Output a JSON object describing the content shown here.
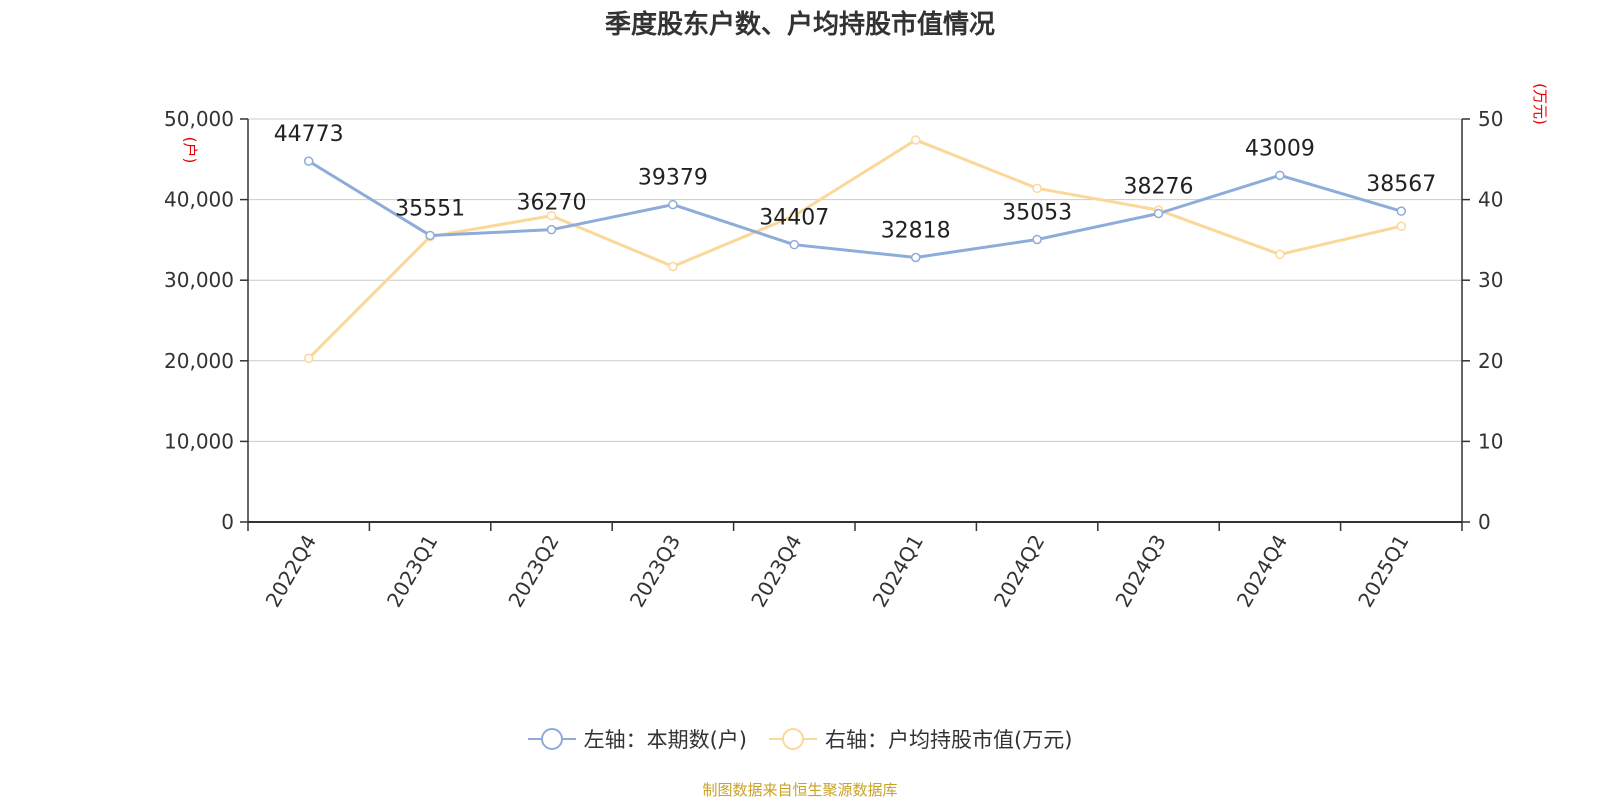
{
  "chart_data": {
    "type": "line",
    "title": "季度股东户数、户均持股市值情况",
    "categories": [
      "2022Q4",
      "2023Q1",
      "2023Q2",
      "2023Q3",
      "2023Q4",
      "2024Q1",
      "2024Q2",
      "2024Q3",
      "2024Q4",
      "2025Q1"
    ],
    "series": [
      {
        "name": "左轴：本期数(户)",
        "axis": "left",
        "color": "#8eacd9",
        "values": [
          44773,
          35551,
          36270,
          39379,
          34407,
          32818,
          35053,
          38276,
          43009,
          38567
        ],
        "labels": [
          "44773",
          "35551",
          "36270",
          "39379",
          "34407",
          "32818",
          "35053",
          "38276",
          "43009",
          "38567"
        ]
      },
      {
        "name": "右轴：户均持股市值(万元)",
        "axis": "right",
        "color": "#fbd89a",
        "values": [
          20.3,
          35.4,
          38.0,
          31.7,
          38.0,
          47.4,
          41.4,
          38.7,
          33.2,
          36.7
        ]
      }
    ],
    "y_left": {
      "unit": "(户)",
      "min": 0,
      "max": 50000,
      "ticks": [
        "0",
        "10,000",
        "20,000",
        "30,000",
        "40,000",
        "50,000"
      ]
    },
    "y_right": {
      "unit": "(万元)",
      "min": 0,
      "max": 50,
      "ticks": [
        "0",
        "10",
        "20",
        "30",
        "40",
        "50"
      ]
    },
    "grid": true,
    "legend_position": "bottom-center",
    "source": "制图数据来自恒生聚源数据库",
    "colors": {
      "axis_unit": "#e60000",
      "source": "#c9a227",
      "grid": "#cccccc",
      "axis": "#333333"
    }
  }
}
